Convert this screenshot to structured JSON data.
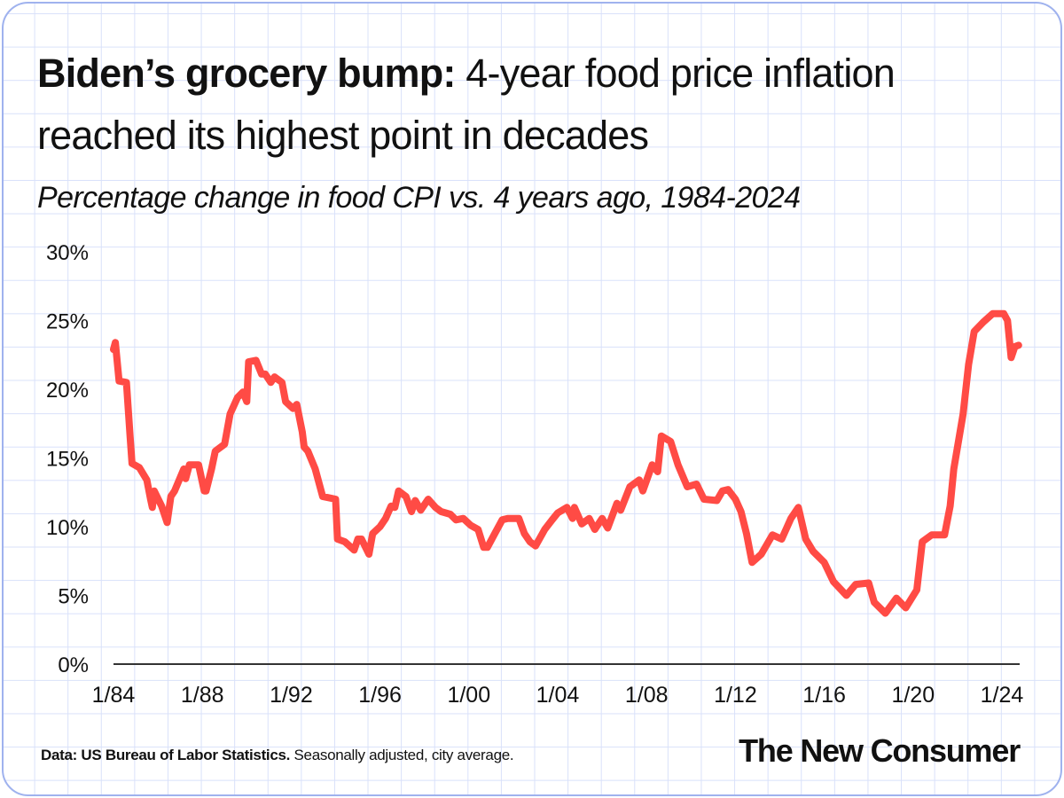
{
  "title": {
    "bold": "Biden’s grocery bump:",
    "rest": " 4-year food price inflation reached its highest point in decades"
  },
  "subtitle": "Percentage change in food CPI vs. 4 years ago, 1984-2024",
  "footer": {
    "source_bold": "Data: US Bureau of Labor Statistics.",
    "source_rest": " Seasonally adjusted, city average.",
    "brand": "The New Consumer"
  },
  "colors": {
    "line": "#ff4b45",
    "grid": "#d9e1fa",
    "border": "#9fb2ee",
    "axis": "#333333"
  },
  "chart_data": {
    "type": "line",
    "title": "Biden’s grocery bump: 4-year food price inflation reached its highest point in decades",
    "subtitle": "Percentage change in food CPI vs. 4 years ago, 1984-2024",
    "xlabel": "",
    "ylabel": "",
    "ylim": [
      0,
      30
    ],
    "yticks": [
      "0%",
      "5%",
      "10%",
      "15%",
      "20%",
      "25%",
      "30%"
    ],
    "ytick_values": [
      0,
      5,
      10,
      15,
      20,
      25,
      30
    ],
    "xticks": [
      "1/84",
      "1/88",
      "1/92",
      "1/96",
      "1/00",
      "1/04",
      "1/08",
      "1/12",
      "1/16",
      "1/20",
      "1/24"
    ],
    "xtick_values": [
      "1984-01",
      "1988-01",
      "1992-01",
      "1996-01",
      "2000-01",
      "2004-01",
      "2008-01",
      "2012-01",
      "2016-01",
      "2020-01",
      "2024-01"
    ],
    "grid": true,
    "legend": "none",
    "series": [
      {
        "points": [
          [
            "1984-01",
            22.9
          ],
          [
            "1984-02",
            23.4
          ],
          [
            "1984-04",
            20.6
          ],
          [
            "1984-08",
            20.5
          ],
          [
            "1984-10",
            16.5
          ],
          [
            "1984-11",
            14.6
          ],
          [
            "1985-03",
            14.3
          ],
          [
            "1985-07",
            13.4
          ],
          [
            "1985-09",
            12.0
          ],
          [
            "1985-10",
            11.4
          ],
          [
            "1985-11",
            12.6
          ],
          [
            "1986-03",
            11.5
          ],
          [
            "1986-06",
            10.3
          ],
          [
            "1986-08",
            12.2
          ],
          [
            "1986-10",
            12.6
          ],
          [
            "1987-03",
            14.2
          ],
          [
            "1987-04",
            13.5
          ],
          [
            "1987-06",
            14.5
          ],
          [
            "1987-11",
            14.5
          ],
          [
            "1988-02",
            12.6
          ],
          [
            "1988-03",
            12.6
          ],
          [
            "1988-06",
            14.2
          ],
          [
            "1988-08",
            15.5
          ],
          [
            "1989-01",
            16.0
          ],
          [
            "1989-04",
            18.2
          ],
          [
            "1989-08",
            19.4
          ],
          [
            "1989-11",
            19.8
          ],
          [
            "1990-01",
            19.1
          ],
          [
            "1990-02",
            22.0
          ],
          [
            "1990-06",
            22.1
          ],
          [
            "1990-09",
            21.1
          ],
          [
            "1990-11",
            21.1
          ],
          [
            "1991-02",
            20.5
          ],
          [
            "1991-04",
            20.9
          ],
          [
            "1991-08",
            20.5
          ],
          [
            "1991-10",
            19.1
          ],
          [
            "1992-02",
            18.6
          ],
          [
            "1992-04",
            18.9
          ],
          [
            "1992-07",
            16.9
          ],
          [
            "1992-08",
            15.8
          ],
          [
            "1992-10",
            15.5
          ],
          [
            "1993-02",
            14.2
          ],
          [
            "1993-06",
            12.2
          ],
          [
            "1994-01",
            12.0
          ],
          [
            "1994-02",
            9.1
          ],
          [
            "1994-06",
            8.9
          ],
          [
            "1994-11",
            8.3
          ],
          [
            "1995-01",
            9.1
          ],
          [
            "1995-03",
            9.1
          ],
          [
            "1995-07",
            8.0
          ],
          [
            "1995-09",
            9.5
          ],
          [
            "1996-01",
            10.0
          ],
          [
            "1996-04",
            10.6
          ],
          [
            "1996-07",
            11.5
          ],
          [
            "1996-09",
            11.4
          ],
          [
            "1996-11",
            12.6
          ],
          [
            "1997-03",
            12.2
          ],
          [
            "1997-06",
            11.1
          ],
          [
            "1997-08",
            11.9
          ],
          [
            "1997-11",
            11.2
          ],
          [
            "1998-03",
            12.0
          ],
          [
            "1998-07",
            11.4
          ],
          [
            "1998-10",
            11.1
          ],
          [
            "1999-03",
            10.9
          ],
          [
            "1999-06",
            10.5
          ],
          [
            "1999-10",
            10.6
          ],
          [
            "2000-02",
            10.1
          ],
          [
            "2000-06",
            9.8
          ],
          [
            "2000-09",
            8.5
          ],
          [
            "2000-11",
            8.5
          ],
          [
            "2001-03",
            9.5
          ],
          [
            "2001-07",
            10.5
          ],
          [
            "2001-10",
            10.6
          ],
          [
            "2002-04",
            10.6
          ],
          [
            "2002-07",
            9.5
          ],
          [
            "2002-10",
            8.9
          ],
          [
            "2003-01",
            8.6
          ],
          [
            "2003-06",
            9.8
          ],
          [
            "2003-10",
            10.5
          ],
          [
            "2004-01",
            11.0
          ],
          [
            "2004-06",
            11.4
          ],
          [
            "2004-09",
            10.6
          ],
          [
            "2004-10",
            11.4
          ],
          [
            "2005-02",
            10.2
          ],
          [
            "2005-06",
            10.6
          ],
          [
            "2005-09",
            9.8
          ],
          [
            "2006-01",
            10.6
          ],
          [
            "2006-04",
            9.9
          ],
          [
            "2006-09",
            11.7
          ],
          [
            "2006-11",
            11.2
          ],
          [
            "2007-04",
            12.9
          ],
          [
            "2007-09",
            13.4
          ],
          [
            "2007-11",
            12.6
          ],
          [
            "2008-04",
            14.5
          ],
          [
            "2008-07",
            14.0
          ],
          [
            "2008-09",
            16.6
          ],
          [
            "2009-02",
            16.2
          ],
          [
            "2009-06",
            14.5
          ],
          [
            "2009-11",
            12.9
          ],
          [
            "2010-04",
            13.1
          ],
          [
            "2010-08",
            12.0
          ],
          [
            "2011-03",
            11.9
          ],
          [
            "2011-06",
            12.6
          ],
          [
            "2011-09",
            12.7
          ],
          [
            "2012-01",
            12.0
          ],
          [
            "2012-04",
            11.1
          ],
          [
            "2012-07",
            9.5
          ],
          [
            "2012-10",
            7.4
          ],
          [
            "2013-03",
            8.0
          ],
          [
            "2013-09",
            9.4
          ],
          [
            "2014-02",
            9.1
          ],
          [
            "2014-07",
            10.6
          ],
          [
            "2014-11",
            11.4
          ],
          [
            "2015-03",
            9.1
          ],
          [
            "2015-07",
            8.2
          ],
          [
            "2016-01",
            7.4
          ],
          [
            "2016-06",
            6.0
          ],
          [
            "2017-01",
            5.0
          ],
          [
            "2017-06",
            5.8
          ],
          [
            "2018-01",
            5.9
          ],
          [
            "2018-04",
            4.5
          ],
          [
            "2018-10",
            3.7
          ],
          [
            "2019-04",
            4.8
          ],
          [
            "2019-09",
            4.1
          ],
          [
            "2020-03",
            5.4
          ],
          [
            "2020-06",
            8.9
          ],
          [
            "2020-11",
            9.4
          ],
          [
            "2021-06",
            9.4
          ],
          [
            "2021-09",
            11.5
          ],
          [
            "2021-11",
            14.2
          ],
          [
            "2022-04",
            18.2
          ],
          [
            "2022-07",
            21.8
          ],
          [
            "2022-10",
            24.2
          ],
          [
            "2023-03",
            24.9
          ],
          [
            "2023-08",
            25.5
          ],
          [
            "2024-02",
            25.5
          ],
          [
            "2024-04",
            25.0
          ],
          [
            "2024-06",
            22.3
          ],
          [
            "2024-08",
            23.1
          ],
          [
            "2024-10",
            23.2
          ]
        ]
      }
    ]
  }
}
